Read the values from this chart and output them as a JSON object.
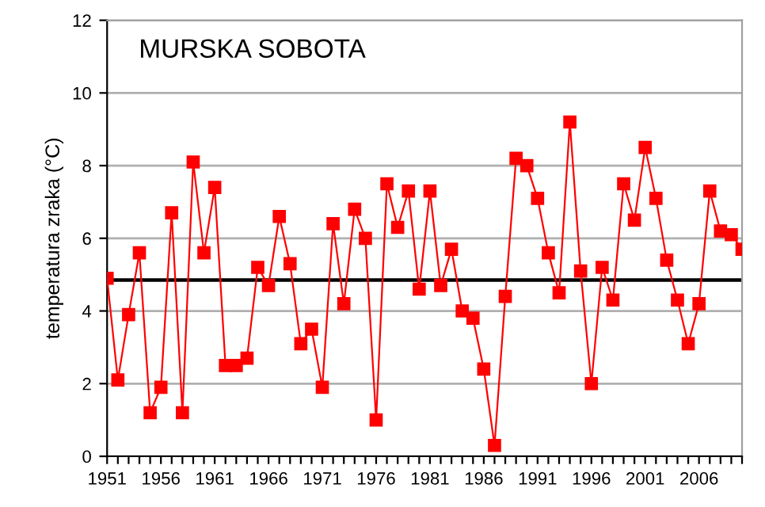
{
  "chart_data": {
    "type": "line",
    "title": "MURSKA SOBOTA",
    "ylabel": "temperatura zraka (°C)",
    "x": [
      1951,
      1952,
      1953,
      1954,
      1955,
      1956,
      1957,
      1958,
      1959,
      1960,
      1961,
      1962,
      1963,
      1964,
      1965,
      1966,
      1967,
      1968,
      1969,
      1970,
      1971,
      1972,
      1973,
      1974,
      1975,
      1976,
      1977,
      1978,
      1979,
      1980,
      1981,
      1982,
      1983,
      1984,
      1985,
      1986,
      1987,
      1988,
      1989,
      1990,
      1991,
      1992,
      1993,
      1994,
      1995,
      1996,
      1997,
      1998,
      1999,
      2000,
      2001,
      2002,
      2003,
      2004,
      2005,
      2006,
      2007,
      2008,
      2009,
      2010
    ],
    "series": [
      {
        "color": "#ff0000",
        "values": [
          4.9,
          2.1,
          3.9,
          5.6,
          1.2,
          1.9,
          6.7,
          1.2,
          8.1,
          5.6,
          7.4,
          2.5,
          2.5,
          2.7,
          5.2,
          4.7,
          6.6,
          5.3,
          3.1,
          3.5,
          1.9,
          6.4,
          4.2,
          6.8,
          6.0,
          1.0,
          7.5,
          6.3,
          7.3,
          4.6,
          7.3,
          4.7,
          5.7,
          4.0,
          3.8,
          2.4,
          0.3,
          4.4,
          8.2,
          8.0,
          7.1,
          5.6,
          4.5,
          9.2,
          5.1,
          2.0,
          5.2,
          4.3,
          7.5,
          6.5,
          8.5,
          7.1,
          5.4,
          4.3,
          3.1,
          4.2,
          7.3,
          6.2,
          6.1,
          5.7
        ]
      }
    ],
    "marker": "square",
    "line_style": "solid",
    "grid": "y",
    "legend": false,
    "xlim": [
      1951,
      2010
    ],
    "ylim": [
      0,
      12
    ],
    "yticks": [
      0,
      2,
      4,
      6,
      8,
      10,
      12
    ],
    "xticks": [
      1951,
      {
        "value": 1952,
        "label": null
      },
      {
        "value": 1953,
        "label": null
      },
      {
        "value": 1954,
        "label": null
      },
      {
        "value": 1955,
        "label": null
      },
      1956,
      {
        "value": 1957,
        "label": null
      },
      {
        "value": 1958,
        "label": null
      },
      {
        "value": 1959,
        "label": null
      },
      {
        "value": 1960,
        "label": null
      },
      1961,
      {
        "value": 1962,
        "label": null
      },
      {
        "value": 1963,
        "label": null
      },
      {
        "value": 1964,
        "label": null
      },
      {
        "value": 1965,
        "label": null
      },
      1966,
      {
        "value": 1967,
        "label": null
      },
      {
        "value": 1968,
        "label": null
      },
      {
        "value": 1969,
        "label": null
      },
      {
        "value": 1970,
        "label": null
      },
      1971,
      {
        "value": 1972,
        "label": null
      },
      {
        "value": 1973,
        "label": null
      },
      {
        "value": 1974,
        "label": null
      },
      {
        "value": 1975,
        "label": null
      },
      1976,
      {
        "value": 1977,
        "label": null
      },
      {
        "value": 1978,
        "label": null
      },
      {
        "value": 1979,
        "label": null
      },
      {
        "value": 1980,
        "label": null
      },
      1981,
      {
        "value": 1982,
        "label": null
      },
      {
        "value": 1983,
        "label": null
      },
      {
        "value": 1984,
        "label": null
      },
      {
        "value": 1985,
        "label": null
      },
      1986,
      {
        "value": 1987,
        "label": null
      },
      {
        "value": 1988,
        "label": null
      },
      {
        "value": 1989,
        "label": null
      },
      {
        "value": 1990,
        "label": null
      },
      1991,
      {
        "value": 1992,
        "label": null
      },
      {
        "value": 1993,
        "label": null
      },
      {
        "value": 1994,
        "label": null
      },
      {
        "value": 1995,
        "label": null
      },
      1996,
      {
        "value": 1997,
        "label": null
      },
      {
        "value": 1998,
        "label": null
      },
      {
        "value": 1999,
        "label": null
      },
      {
        "value": 2000,
        "label": null
      },
      2001,
      {
        "value": 2002,
        "label": null
      },
      {
        "value": 2003,
        "label": null
      },
      {
        "value": 2004,
        "label": null
      },
      {
        "value": 2005,
        "label": null
      },
      2006,
      {
        "value": 2007,
        "label": null
      },
      {
        "value": 2008,
        "label": null
      },
      {
        "value": 2009,
        "label": null
      },
      {
        "value": 2010,
        "label": null
      }
    ],
    "ref_lines": [
      {
        "axis": "y",
        "value": 4.85,
        "color": "#000000",
        "line_style": "solid"
      }
    ]
  }
}
